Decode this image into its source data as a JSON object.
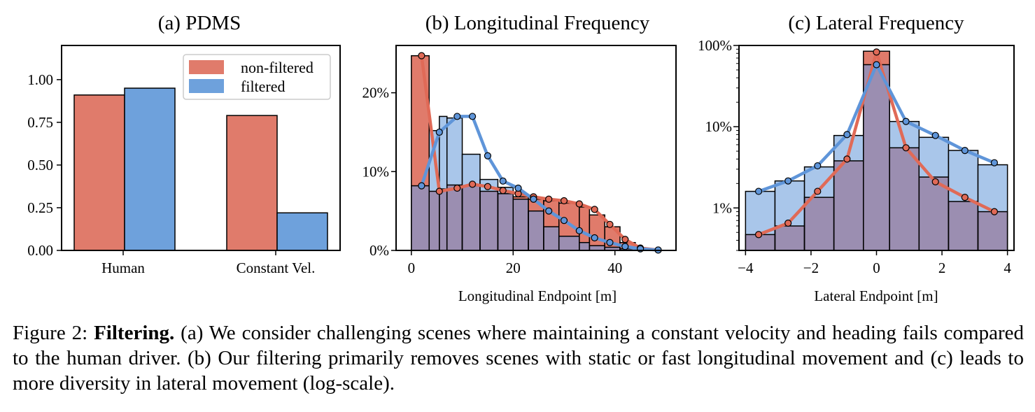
{
  "colors": {
    "non_filtered": "#e07b6b",
    "filtered": "#6ea1dc",
    "filtered_light": "#a9c6ea",
    "overlap": "#9b8eb1",
    "line_red": "#e06a57",
    "line_blue": "#5f95d9"
  },
  "chart_data": [
    {
      "type": "bar",
      "title": "(a) PDMS",
      "categories": [
        "Human",
        "Constant Vel."
      ],
      "series": [
        {
          "name": "non-filtered",
          "values": [
            0.91,
            0.79
          ]
        },
        {
          "name": "filtered",
          "values": [
            0.95,
            0.22
          ]
        }
      ],
      "ylim": [
        0,
        1.2
      ],
      "yticks": [
        "0.00",
        "0.25",
        "0.50",
        "0.75",
        "1.00"
      ],
      "legend": "top-right",
      "grid": false
    },
    {
      "type": "bar",
      "title": "(b) Longitudinal Frequency",
      "xlabel": "Longitudinal Endpoint [m]",
      "xlim": [
        -3,
        52
      ],
      "ylim": [
        0,
        26
      ],
      "xticks": [
        "0",
        "20",
        "40"
      ],
      "yticks": [
        "0%",
        "10%",
        "20%"
      ],
      "bin_edges": [
        0,
        3.5,
        5.5,
        7,
        10,
        13.5,
        17,
        20,
        23,
        26,
        29,
        33,
        35,
        38,
        41,
        44
      ],
      "series": [
        {
          "name": "non-filtered",
          "values": [
            24.7,
            7.5,
            7.8,
            8.3,
            8.2,
            7.5,
            7.2,
            6.8,
            6.5,
            6.3,
            6.0,
            5.5,
            4.5,
            3.0,
            1.0
          ]
        },
        {
          "name": "filtered",
          "values": [
            8.2,
            15.2,
            17.0,
            16.8,
            12.2,
            9.0,
            8.0,
            6.5,
            5.0,
            3.0,
            1.8,
            1.0,
            0.6,
            0.4,
            0.2
          ]
        }
      ],
      "lines": [
        {
          "name": "non-filtered",
          "x": [
            2,
            5.5,
            9,
            12,
            15,
            18,
            21,
            24,
            27,
            30,
            33,
            36,
            39,
            42,
            45,
            48.5
          ],
          "y": [
            24.7,
            7.5,
            7.9,
            8.4,
            8.1,
            7.6,
            7.2,
            6.8,
            6.5,
            6.3,
            5.9,
            5.2,
            3.3,
            1.4,
            0.3,
            0.05
          ]
        },
        {
          "name": "filtered",
          "x": [
            2,
            5.5,
            9,
            12,
            15,
            18,
            21,
            24,
            27,
            30,
            33,
            36,
            39,
            42,
            45,
            48.5
          ],
          "y": [
            8.2,
            15.0,
            17.0,
            17.0,
            12.0,
            8.8,
            7.9,
            6.5,
            5.0,
            3.8,
            2.5,
            1.6,
            1.0,
            0.5,
            0.2,
            0.05
          ]
        }
      ]
    },
    {
      "type": "bar",
      "title": "(c) Lateral Frequency",
      "xlabel": "Lateral Endpoint [m]",
      "xlim": [
        -4.2,
        4.2
      ],
      "ylim": [
        0.3,
        100
      ],
      "yscale": "log",
      "xticks": [
        "−4",
        "−2",
        "0",
        "2",
        "4"
      ],
      "yticks": [
        "1%",
        "10%",
        "100%"
      ],
      "bin_edges": [
        -4,
        -3.1,
        -2.2,
        -1.3,
        -0.4,
        0.4,
        1.3,
        2.2,
        3.1,
        4
      ],
      "series": [
        {
          "name": "non-filtered",
          "values": [
            0.47,
            0.6,
            1.35,
            3.8,
            85,
            5.5,
            2.4,
            1.2,
            0.9
          ]
        },
        {
          "name": "filtered",
          "values": [
            1.6,
            2.15,
            3.2,
            7.8,
            58,
            11.6,
            7.4,
            5.1,
            3.4
          ]
        }
      ],
      "lines": [
        {
          "name": "non-filtered",
          "x": [
            -3.6,
            -2.7,
            -1.8,
            -0.9,
            0,
            0.9,
            1.8,
            2.7,
            3.6
          ],
          "y": [
            0.47,
            0.65,
            1.6,
            4.0,
            83,
            5.5,
            2.1,
            1.35,
            0.9
          ]
        },
        {
          "name": "filtered",
          "x": [
            -3.6,
            -2.7,
            -1.8,
            -0.9,
            0,
            0.9,
            1.8,
            2.7,
            3.6
          ],
          "y": [
            1.6,
            2.15,
            3.3,
            8.0,
            58,
            11.6,
            7.8,
            5.1,
            3.6
          ]
        }
      ]
    }
  ],
  "caption": {
    "prefix": "Figure 2: ",
    "bold": "Filtering.",
    "text": " (a) We consider challenging scenes where maintaining a constant velocity and heading fails compared to the human driver. (b) Our filtering primarily removes scenes with static or fast longitudinal movement and (c) leads to more diversity in lateral movement (log-scale)."
  }
}
